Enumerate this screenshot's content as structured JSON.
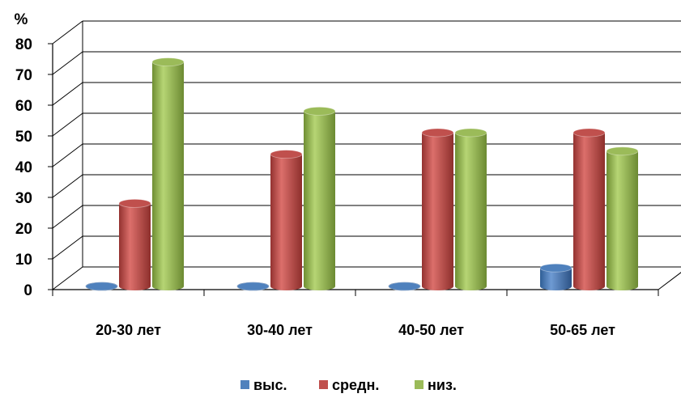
{
  "chart_data": {
    "type": "bar",
    "style": "3d-cylinder",
    "ylabel": "%",
    "ylim": [
      0,
      80
    ],
    "yticks": [
      0,
      10,
      20,
      30,
      40,
      50,
      60,
      70,
      80
    ],
    "grid": true,
    "legend_position": "bottom",
    "categories": [
      "20-30 лет",
      "30-40 лет",
      "40-50 лет",
      "50-65 лет"
    ],
    "series": [
      {
        "name": "выс.",
        "color": "#4f81bd",
        "values": [
          0,
          0,
          0,
          6
        ]
      },
      {
        "name": "средн.",
        "color": "#c0504d",
        "values": [
          27,
          43,
          50,
          50
        ]
      },
      {
        "name": "низ.",
        "color": "#9bbb59",
        "values": [
          73,
          57,
          50,
          44
        ]
      }
    ]
  }
}
